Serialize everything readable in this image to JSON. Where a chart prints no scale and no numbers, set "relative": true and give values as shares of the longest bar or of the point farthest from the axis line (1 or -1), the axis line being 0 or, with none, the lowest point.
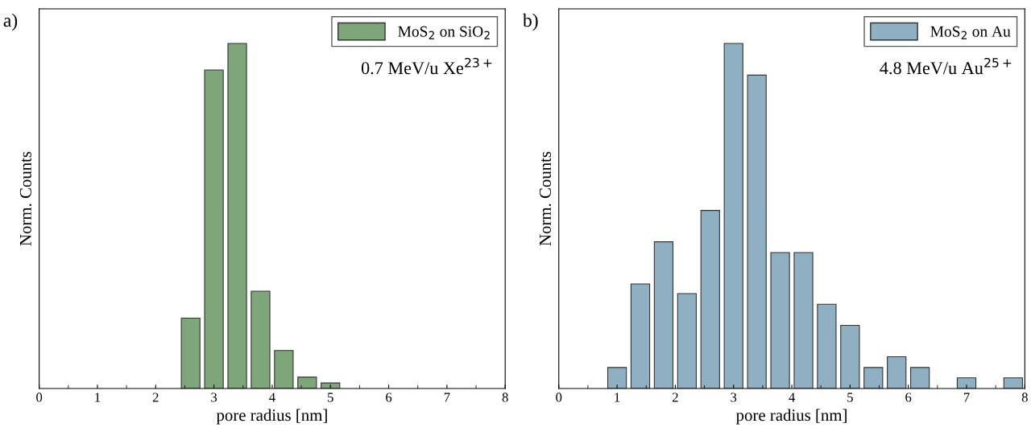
{
  "chart_data": [
    {
      "type": "bar",
      "xlabel": "pore radius [nm]",
      "ylabel": "Norm. Counts",
      "relative": true,
      "legend": "top right",
      "tick_labels": "x",
      "grid": false,
      "x": [
        2.6,
        3.0,
        3.4,
        3.8,
        4.2,
        4.6,
        5.0
      ],
      "series": [
        {
          "name": "MoS$_{2}$ on SiO$_{2}$",
          "color": "#7fa67a",
          "values": [
            0.204,
            0.923,
            1.0,
            0.282,
            0.11,
            0.033,
            0.016
          ]
        }
      ],
      "xlim": [
        0,
        8
      ],
      "xticks": [
        0,
        {
          "value": 0.5,
          "label": null
        },
        1,
        {
          "value": 1.5,
          "label": null
        },
        2,
        {
          "value": 2.5,
          "label": null
        },
        3,
        {
          "value": 3.5,
          "label": null
        },
        4,
        {
          "value": 4.5,
          "label": null
        },
        5,
        {
          "value": 5.5,
          "label": null
        },
        6,
        {
          "value": 6.5,
          "label": null
        },
        7,
        {
          "value": 7.5,
          "label": null
        },
        8
      ],
      "annotations": [
        "a)",
        "0.7 MeV/u Xe$^{23+}$"
      ]
    },
    {
      "type": "bar",
      "xlabel": "pore radius [nm]",
      "ylabel": "Norm. Counts",
      "relative": true,
      "legend": "top right",
      "tick_labels": "x",
      "grid": false,
      "x": [
        1.0,
        1.4,
        1.8,
        2.2,
        2.6,
        3.0,
        3.4,
        3.8,
        4.2,
        4.6,
        5.0,
        5.4,
        5.8,
        6.2,
        6.6,
        7.0,
        7.4,
        7.8
      ],
      "series": [
        {
          "name": "MoS$_{2}$ on Au",
          "color": "#8fb0c2",
          "values": [
            0.061,
            0.303,
            0.425,
            0.275,
            0.516,
            1.0,
            0.908,
            0.394,
            0.394,
            0.244,
            0.183,
            0.061,
            0.092,
            0.061,
            null,
            0.031,
            null,
            0.031
          ]
        }
      ],
      "xlim": [
        0,
        8
      ],
      "xticks": [
        0,
        {
          "value": 0.5,
          "label": null
        },
        1,
        {
          "value": 1.5,
          "label": null
        },
        2,
        {
          "value": 2.5,
          "label": null
        },
        3,
        {
          "value": 3.5,
          "label": null
        },
        4,
        {
          "value": 4.5,
          "label": null
        },
        5,
        {
          "value": 5.5,
          "label": null
        },
        6,
        {
          "value": 6.5,
          "label": null
        },
        7,
        {
          "value": 7.5,
          "label": null
        },
        8
      ],
      "annotations": [
        "b)",
        "4.8 MeV/u Au$^{25+}$"
      ]
    }
  ]
}
